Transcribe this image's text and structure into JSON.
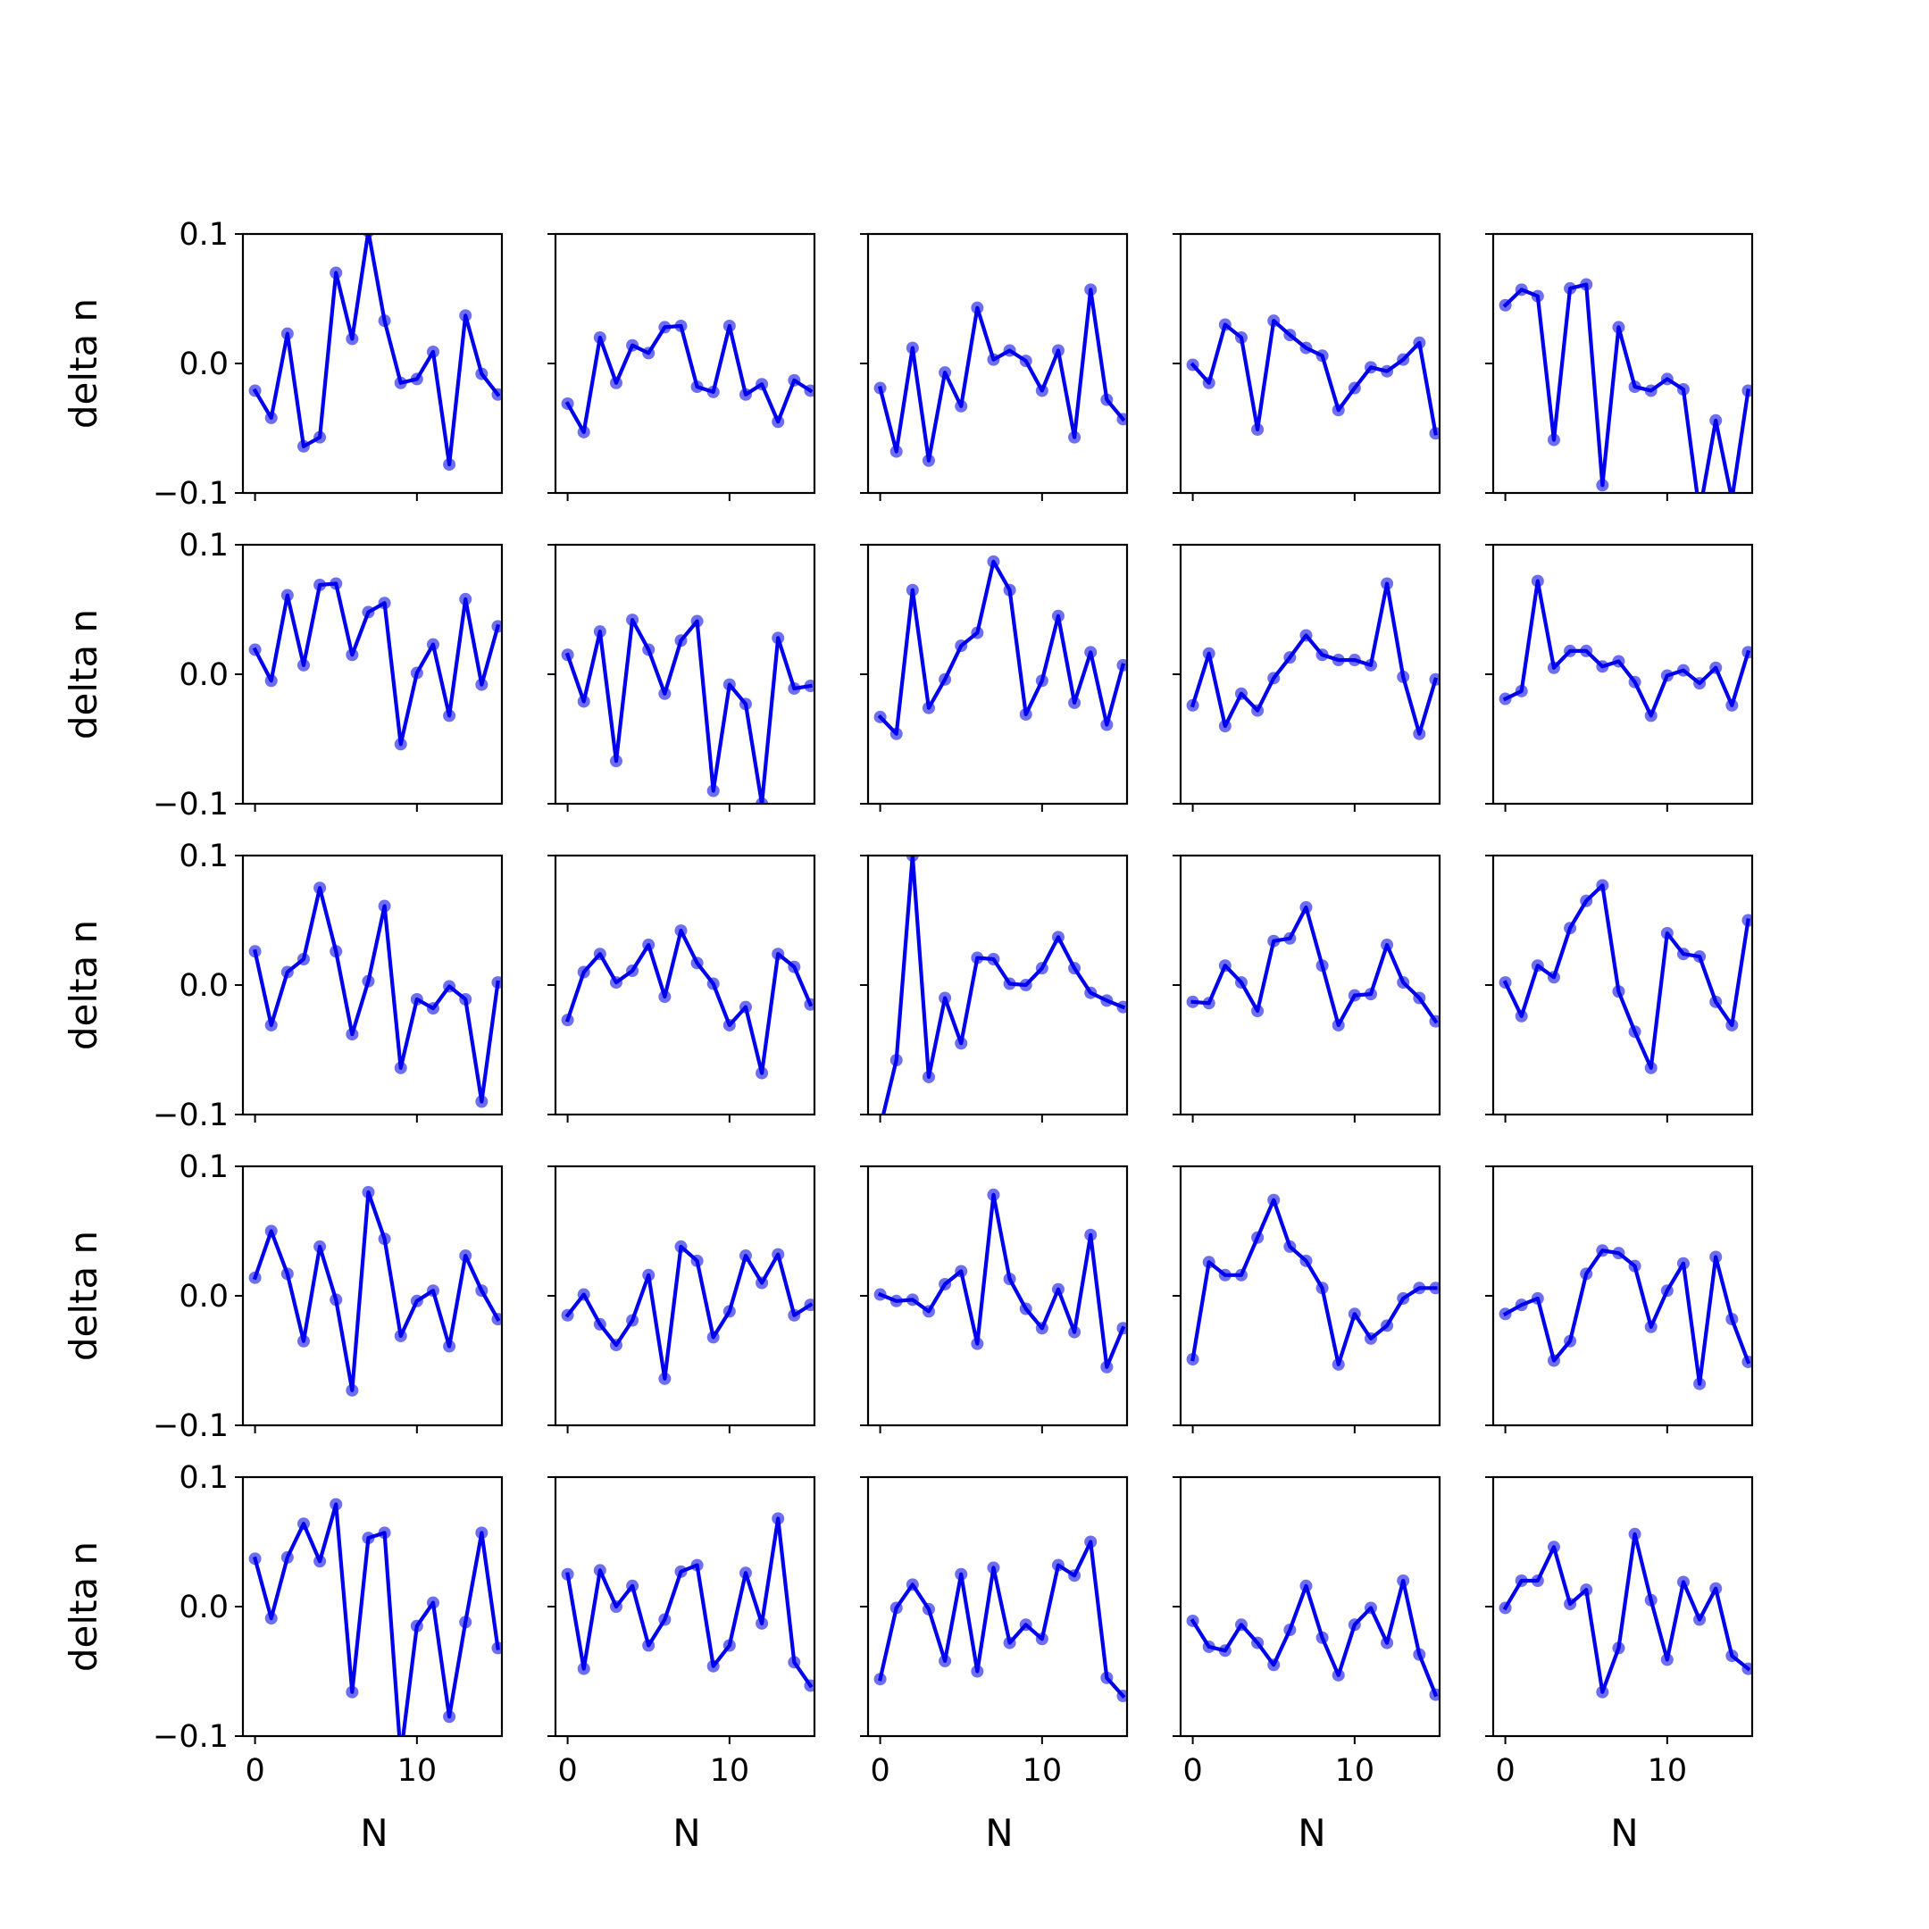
{
  "chart_data": {
    "type": "line",
    "layout": "5x5 grid of small multiples",
    "shared_x": true,
    "shared_y": true,
    "xlabel": "N",
    "ylabel": "delta n",
    "xlim": [
      -0.75,
      15.25
    ],
    "ylim": [
      -0.1,
      0.1
    ],
    "xticks": [
      0,
      10
    ],
    "xtick_labels": [
      "0",
      "10"
    ],
    "yticks": [
      -0.1,
      0.0,
      0.1
    ],
    "ytick_labels": [
      "−0.1",
      "0.0",
      "0.1"
    ],
    "grid": false,
    "legend": false,
    "line_color": "#0000ee",
    "marker_color": "#5555ee",
    "x": [
      0,
      1,
      2,
      3,
      4,
      5,
      6,
      7,
      8,
      9,
      10,
      11,
      12,
      13,
      14,
      15
    ],
    "panels": [
      [
        -0.021,
        -0.042,
        0.023,
        -0.064,
        -0.057,
        0.07,
        0.019,
        0.102,
        0.033,
        -0.015,
        -0.012,
        0.009,
        -0.078,
        0.037,
        -0.008,
        -0.024
      ],
      [
        -0.031,
        -0.053,
        0.02,
        -0.015,
        0.014,
        0.008,
        0.028,
        0.029,
        -0.018,
        -0.022,
        0.029,
        -0.024,
        -0.016,
        -0.045,
        -0.013,
        -0.021
      ],
      [
        -0.019,
        -0.068,
        0.012,
        -0.075,
        -0.007,
        -0.033,
        0.043,
        0.003,
        0.01,
        0.002,
        -0.021,
        0.01,
        -0.057,
        0.057,
        -0.028,
        -0.043
      ],
      [
        -0.001,
        -0.015,
        0.03,
        0.02,
        -0.051,
        0.033,
        0.022,
        0.012,
        0.006,
        -0.036,
        -0.019,
        -0.003,
        -0.006,
        0.003,
        0.016,
        -0.054
      ],
      [
        0.045,
        0.057,
        0.052,
        -0.059,
        0.058,
        0.061,
        -0.094,
        0.028,
        -0.018,
        -0.021,
        -0.012,
        -0.02,
        -0.115,
        -0.044,
        -0.105,
        -0.021
      ],
      [
        0.019,
        -0.005,
        0.061,
        0.007,
        0.069,
        0.07,
        0.015,
        0.048,
        0.055,
        -0.054,
        0.001,
        0.023,
        -0.032,
        0.058,
        -0.008,
        0.037
      ],
      [
        0.015,
        -0.021,
        0.033,
        -0.067,
        0.042,
        0.019,
        -0.015,
        0.026,
        0.041,
        -0.09,
        -0.008,
        -0.023,
        -0.1,
        0.028,
        -0.011,
        -0.009
      ],
      [
        -0.033,
        -0.046,
        0.065,
        -0.026,
        -0.004,
        0.022,
        0.032,
        0.087,
        0.065,
        -0.031,
        -0.005,
        0.045,
        -0.022,
        0.017,
        -0.039,
        0.007
      ],
      [
        -0.024,
        0.016,
        -0.04,
        -0.015,
        -0.028,
        -0.003,
        0.013,
        0.03,
        0.015,
        0.011,
        0.011,
        0.007,
        0.07,
        -0.002,
        -0.046,
        -0.004
      ],
      [
        -0.019,
        -0.013,
        0.072,
        0.005,
        0.018,
        0.018,
        0.006,
        0.01,
        -0.006,
        -0.032,
        -0.001,
        0.003,
        -0.007,
        0.005,
        -0.024,
        0.017
      ],
      [
        0.026,
        -0.031,
        0.01,
        0.02,
        0.075,
        0.026,
        -0.038,
        0.003,
        0.061,
        -0.064,
        -0.011,
        -0.018,
        -0.001,
        -0.011,
        -0.09,
        0.002
      ],
      [
        -0.027,
        0.01,
        0.024,
        0.002,
        0.011,
        0.031,
        -0.009,
        0.042,
        0.017,
        0.001,
        -0.031,
        -0.017,
        -0.068,
        0.024,
        0.014,
        -0.015
      ],
      [
        -0.11,
        -0.058,
        0.1,
        -0.071,
        -0.01,
        -0.045,
        0.021,
        0.02,
        0.001,
        0.0,
        0.013,
        0.037,
        0.013,
        -0.006,
        -0.012,
        -0.017
      ],
      [
        -0.013,
        -0.014,
        0.015,
        0.002,
        -0.02,
        0.034,
        0.036,
        0.06,
        0.015,
        -0.031,
        -0.008,
        -0.007,
        0.031,
        0.002,
        -0.01,
        -0.028
      ],
      [
        0.002,
        -0.024,
        0.015,
        0.006,
        0.044,
        0.065,
        0.077,
        -0.005,
        -0.036,
        -0.064,
        0.04,
        0.024,
        0.022,
        -0.013,
        -0.031,
        0.05
      ],
      [
        0.014,
        0.05,
        0.017,
        -0.035,
        0.038,
        -0.003,
        -0.073,
        0.08,
        0.044,
        -0.031,
        -0.004,
        0.004,
        -0.039,
        0.031,
        0.004,
        -0.018
      ],
      [
        -0.015,
        0.001,
        -0.022,
        -0.038,
        -0.019,
        0.016,
        -0.064,
        0.038,
        0.027,
        -0.032,
        -0.012,
        0.031,
        0.01,
        0.032,
        -0.015,
        -0.007
      ],
      [
        0.001,
        -0.004,
        -0.003,
        -0.012,
        0.009,
        0.019,
        -0.037,
        0.078,
        0.013,
        -0.01,
        -0.025,
        0.005,
        -0.028,
        0.047,
        -0.055,
        -0.025
      ],
      [
        -0.049,
        0.026,
        0.016,
        0.016,
        0.045,
        0.074,
        0.038,
        0.027,
        0.006,
        -0.053,
        -0.014,
        -0.033,
        -0.023,
        -0.002,
        0.006,
        0.006
      ],
      [
        -0.014,
        -0.007,
        -0.002,
        -0.05,
        -0.035,
        0.017,
        0.035,
        0.033,
        0.023,
        -0.024,
        0.004,
        0.025,
        -0.068,
        0.03,
        -0.018,
        -0.051
      ],
      [
        0.037,
        -0.009,
        0.038,
        0.064,
        0.035,
        0.079,
        -0.066,
        0.053,
        0.057,
        -0.115,
        -0.015,
        0.003,
        -0.085,
        -0.012,
        0.057,
        -0.032
      ],
      [
        0.025,
        -0.048,
        0.028,
        0.0,
        0.016,
        -0.03,
        -0.01,
        0.027,
        0.032,
        -0.046,
        -0.03,
        0.026,
        -0.013,
        0.068,
        -0.043,
        -0.061
      ],
      [
        -0.056,
        -0.001,
        0.017,
        -0.002,
        -0.042,
        0.025,
        -0.05,
        0.03,
        -0.028,
        -0.014,
        -0.025,
        0.032,
        0.024,
        0.05,
        -0.055,
        -0.069
      ],
      [
        -0.011,
        -0.031,
        -0.034,
        -0.014,
        -0.028,
        -0.045,
        -0.018,
        0.016,
        -0.024,
        -0.053,
        -0.014,
        -0.001,
        -0.028,
        0.02,
        -0.037,
        -0.068
      ],
      [
        -0.001,
        0.02,
        0.02,
        0.046,
        0.002,
        0.013,
        -0.066,
        -0.032,
        0.056,
        0.005,
        -0.041,
        0.019,
        -0.01,
        0.014,
        -0.038,
        -0.048
      ]
    ]
  }
}
